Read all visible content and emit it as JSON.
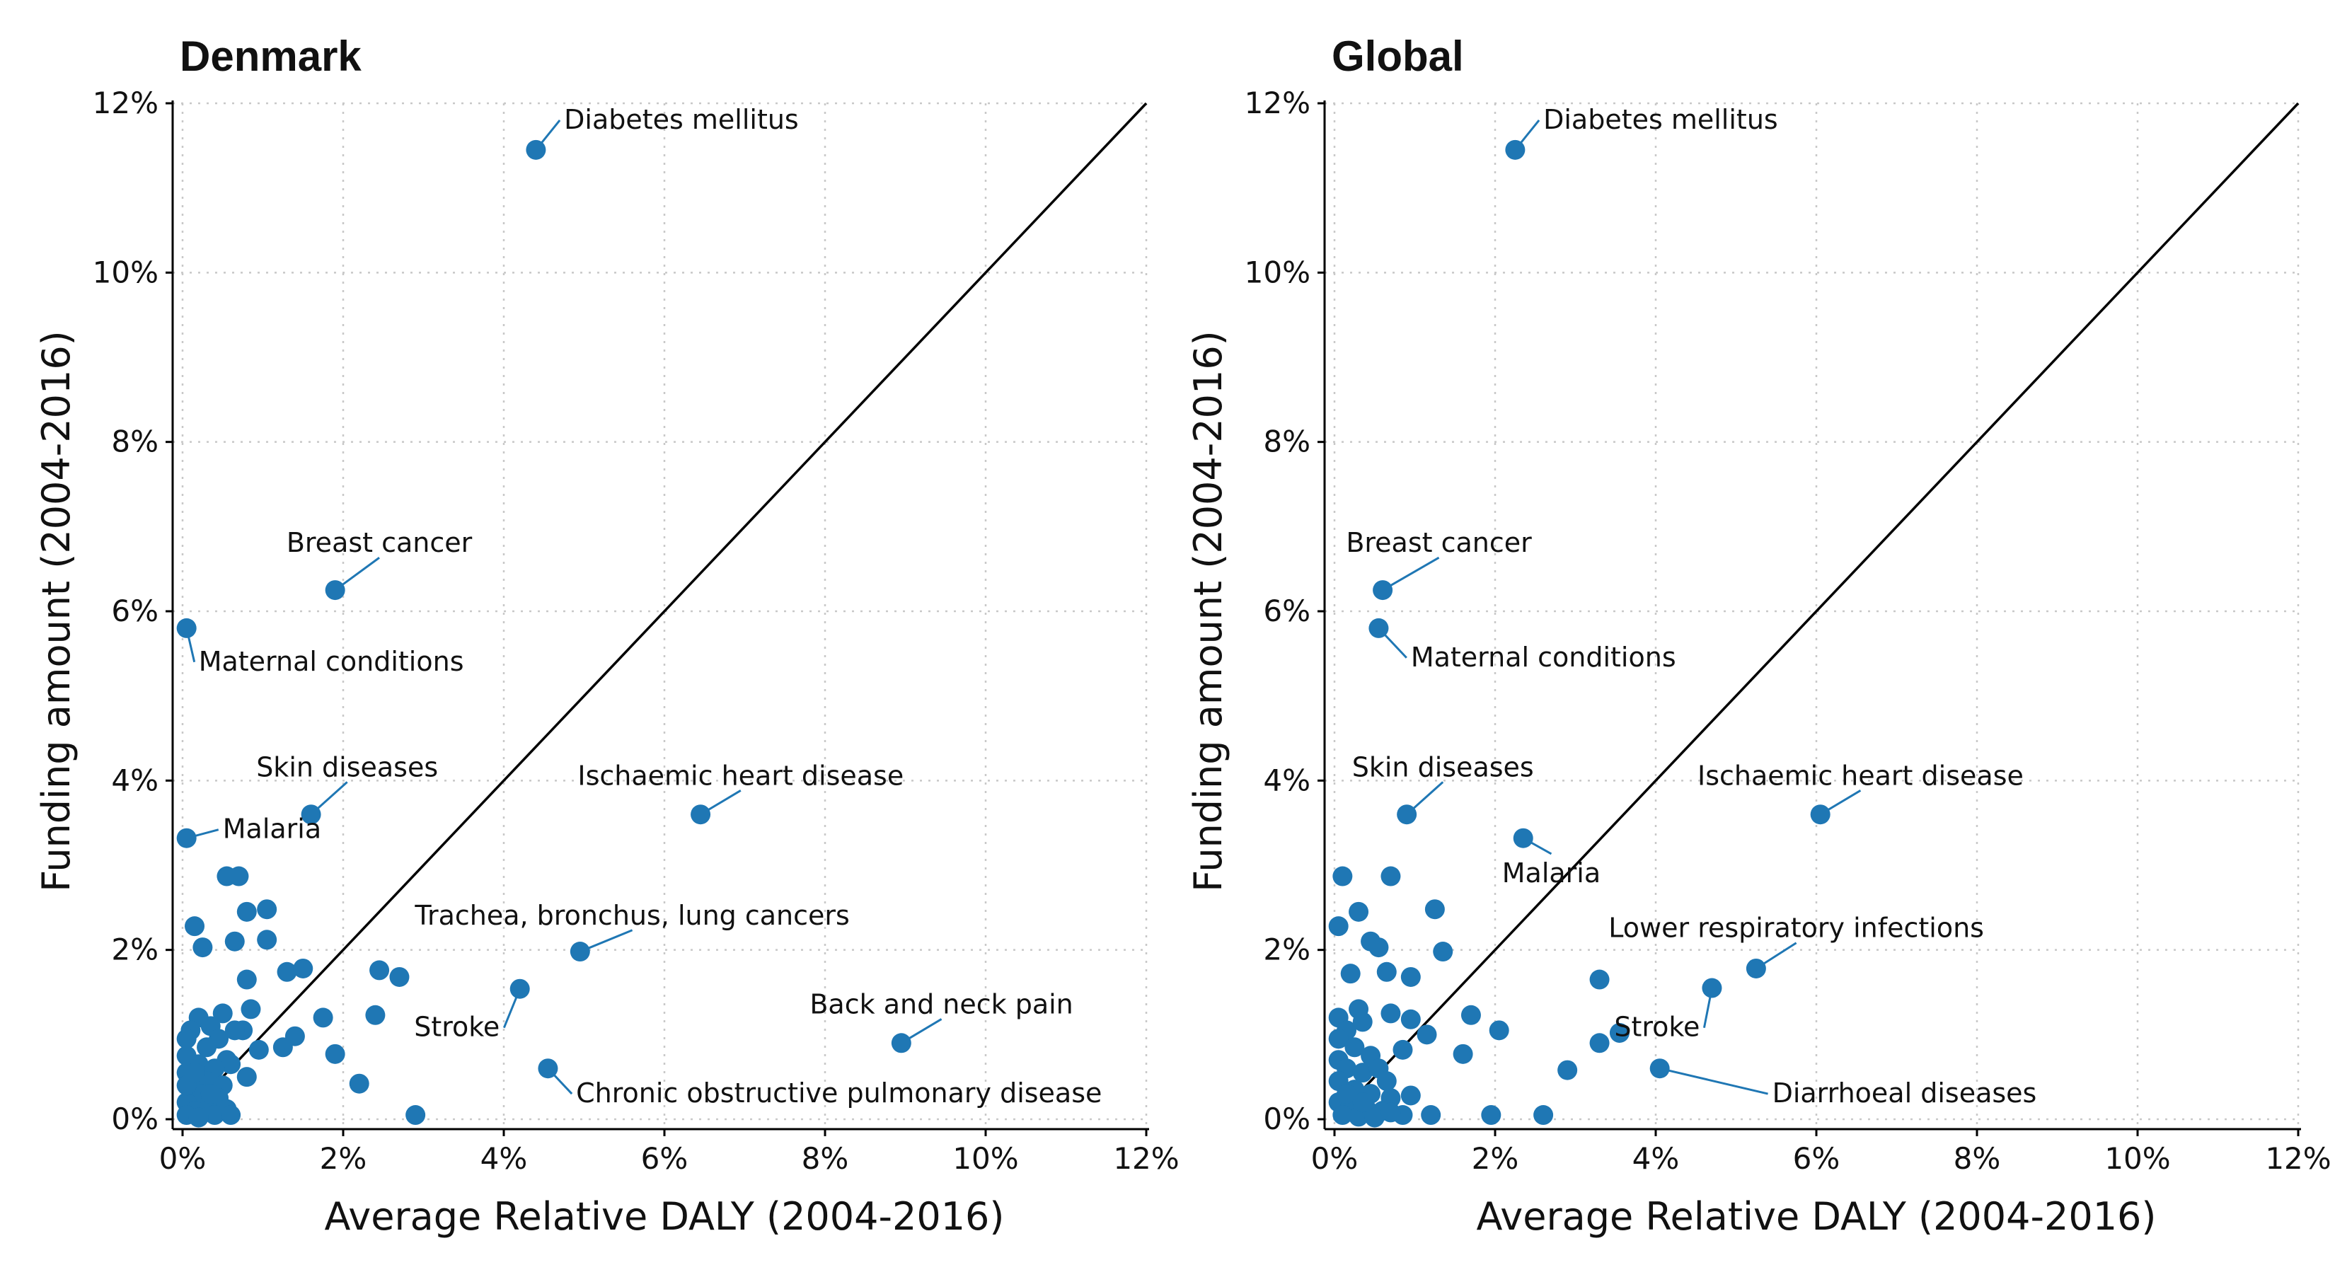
{
  "colors": {
    "point": "#1f77b4",
    "axis": "#000000",
    "grid": "#c8c8c8"
  },
  "chart_data": [
    {
      "type": "scatter",
      "title": "Denmark",
      "xlabel": "Average Relative DALY (2004-2016)",
      "ylabel": "Funding amount (2004-2016)",
      "xlim": [
        0,
        12
      ],
      "ylim": [
        0,
        12
      ],
      "ticks": [
        "0%",
        "2%",
        "4%",
        "6%",
        "8%",
        "10%",
        "12%"
      ],
      "grid": true,
      "reference_line": "y = x",
      "points": [
        {
          "x": 4.4,
          "y": 11.45
        },
        {
          "x": 1.9,
          "y": 6.25
        },
        {
          "x": 0.05,
          "y": 5.8
        },
        {
          "x": 1.6,
          "y": 3.6
        },
        {
          "x": 6.45,
          "y": 3.6
        },
        {
          "x": 0.05,
          "y": 3.32
        },
        {
          "x": 4.95,
          "y": 1.98
        },
        {
          "x": 4.2,
          "y": 1.54
        },
        {
          "x": 8.95,
          "y": 0.9
        },
        {
          "x": 4.55,
          "y": 0.6
        },
        {
          "x": 0.55,
          "y": 2.87
        },
        {
          "x": 0.7,
          "y": 2.87
        },
        {
          "x": 0.8,
          "y": 2.45
        },
        {
          "x": 1.05,
          "y": 2.48
        },
        {
          "x": 0.15,
          "y": 2.28
        },
        {
          "x": 0.25,
          "y": 2.03
        },
        {
          "x": 0.65,
          "y": 2.1
        },
        {
          "x": 1.05,
          "y": 2.12
        },
        {
          "x": 0.8,
          "y": 1.65
        },
        {
          "x": 1.3,
          "y": 1.74
        },
        {
          "x": 1.5,
          "y": 1.78
        },
        {
          "x": 2.45,
          "y": 1.76
        },
        {
          "x": 2.7,
          "y": 1.68
        },
        {
          "x": 0.85,
          "y": 1.3
        },
        {
          "x": 1.75,
          "y": 1.2
        },
        {
          "x": 2.4,
          "y": 1.23
        },
        {
          "x": 0.75,
          "y": 1.05
        },
        {
          "x": 1.4,
          "y": 0.98
        },
        {
          "x": 1.25,
          "y": 0.85
        },
        {
          "x": 0.95,
          "y": 0.82
        },
        {
          "x": 1.9,
          "y": 0.77
        },
        {
          "x": 0.8,
          "y": 0.5
        },
        {
          "x": 2.2,
          "y": 0.42
        },
        {
          "x": 2.9,
          "y": 0.05
        },
        {
          "x": 0.2,
          "y": 1.2
        },
        {
          "x": 0.5,
          "y": 1.25
        },
        {
          "x": 0.35,
          "y": 1.1
        },
        {
          "x": 0.1,
          "y": 1.05
        },
        {
          "x": 0.45,
          "y": 0.95
        },
        {
          "x": 0.65,
          "y": 1.05
        },
        {
          "x": 0.05,
          "y": 0.95
        },
        {
          "x": 0.3,
          "y": 0.85
        },
        {
          "x": 0.55,
          "y": 0.7
        },
        {
          "x": 0.05,
          "y": 0.75
        },
        {
          "x": 0.2,
          "y": 0.65
        },
        {
          "x": 0.6,
          "y": 0.65
        },
        {
          "x": 0.4,
          "y": 0.6
        },
        {
          "x": 0.05,
          "y": 0.55
        },
        {
          "x": 0.3,
          "y": 0.45
        },
        {
          "x": 0.5,
          "y": 0.4
        },
        {
          "x": 0.1,
          "y": 0.35
        },
        {
          "x": 0.25,
          "y": 0.3
        },
        {
          "x": 0.45,
          "y": 0.25
        },
        {
          "x": 0.05,
          "y": 0.2
        },
        {
          "x": 0.3,
          "y": 0.15
        },
        {
          "x": 0.55,
          "y": 0.12
        },
        {
          "x": 0.15,
          "y": 0.1
        },
        {
          "x": 0.4,
          "y": 0.05
        },
        {
          "x": 0.6,
          "y": 0.05
        },
        {
          "x": 0.05,
          "y": 0.05
        },
        {
          "x": 0.2,
          "y": 0.02
        },
        {
          "x": 0.35,
          "y": 0.3
        },
        {
          "x": 0.05,
          "y": 0.4
        },
        {
          "x": 0.15,
          "y": 0.55
        }
      ],
      "annotations": [
        {
          "text": "Diabetes mellitus",
          "x": 4.4,
          "y": 11.45,
          "lx": 4.75,
          "ly": 11.7,
          "anchor": "start"
        },
        {
          "text": "Breast cancer",
          "x": 1.9,
          "y": 6.25,
          "lx": 2.45,
          "ly": 6.7,
          "anchor": "middle"
        },
        {
          "text": "Maternal conditions",
          "x": 0.05,
          "y": 5.8,
          "lx": 0.2,
          "ly": 5.3,
          "anchor": "start"
        },
        {
          "text": "Skin diseases",
          "x": 1.6,
          "y": 3.6,
          "lx": 2.05,
          "ly": 4.05,
          "anchor": "middle"
        },
        {
          "text": "Ischaemic heart disease",
          "x": 6.45,
          "y": 3.6,
          "lx": 6.95,
          "ly": 3.95,
          "anchor": "middle"
        },
        {
          "text": "Malaria",
          "x": 0.05,
          "y": 3.32,
          "lx": 0.5,
          "ly": 3.32,
          "anchor": "start"
        },
        {
          "text": "Trachea, bronchus, lung cancers",
          "x": 4.95,
          "y": 1.98,
          "lx": 5.6,
          "ly": 2.3,
          "anchor": "middle"
        },
        {
          "text": "Stroke",
          "x": 4.2,
          "y": 1.54,
          "lx": 3.95,
          "ly": 0.98,
          "anchor": "end"
        },
        {
          "text": "Back and neck pain",
          "x": 8.95,
          "y": 0.9,
          "lx": 9.45,
          "ly": 1.25,
          "anchor": "middle"
        },
        {
          "text": "Chronic obstructive pulmonary disease",
          "x": 4.55,
          "y": 0.6,
          "lx": 4.9,
          "ly": 0.2,
          "anchor": "start"
        }
      ]
    },
    {
      "type": "scatter",
      "title": "Global",
      "xlabel": "Average Relative DALY (2004-2016)",
      "ylabel": "Funding amount (2004-2016)",
      "xlim": [
        0,
        12
      ],
      "ylim": [
        0,
        12
      ],
      "ticks": [
        "0%",
        "2%",
        "4%",
        "6%",
        "8%",
        "10%",
        "12%"
      ],
      "grid": true,
      "reference_line": "y = x",
      "points": [
        {
          "x": 2.25,
          "y": 11.45
        },
        {
          "x": 0.6,
          "y": 6.25
        },
        {
          "x": 0.55,
          "y": 5.8
        },
        {
          "x": 0.9,
          "y": 3.6
        },
        {
          "x": 6.05,
          "y": 3.6
        },
        {
          "x": 2.35,
          "y": 3.32
        },
        {
          "x": 5.25,
          "y": 1.78
        },
        {
          "x": 4.7,
          "y": 1.55
        },
        {
          "x": 3.55,
          "y": 1.02
        },
        {
          "x": 4.05,
          "y": 0.6
        },
        {
          "x": 0.1,
          "y": 2.87
        },
        {
          "x": 0.7,
          "y": 2.87
        },
        {
          "x": 0.3,
          "y": 2.45
        },
        {
          "x": 1.25,
          "y": 2.48
        },
        {
          "x": 0.05,
          "y": 2.28
        },
        {
          "x": 0.45,
          "y": 2.1
        },
        {
          "x": 0.55,
          "y": 2.03
        },
        {
          "x": 1.35,
          "y": 1.98
        },
        {
          "x": 0.2,
          "y": 1.72
        },
        {
          "x": 0.65,
          "y": 1.74
        },
        {
          "x": 0.95,
          "y": 1.68
        },
        {
          "x": 3.3,
          "y": 1.65
        },
        {
          "x": 0.3,
          "y": 1.3
        },
        {
          "x": 0.7,
          "y": 1.25
        },
        {
          "x": 0.95,
          "y": 1.18
        },
        {
          "x": 1.7,
          "y": 1.23
        },
        {
          "x": 2.05,
          "y": 1.05
        },
        {
          "x": 1.15,
          "y": 1.0
        },
        {
          "x": 3.3,
          "y": 0.9
        },
        {
          "x": 1.6,
          "y": 0.77
        },
        {
          "x": 0.85,
          "y": 0.82
        },
        {
          "x": 2.9,
          "y": 0.58
        },
        {
          "x": 0.95,
          "y": 0.28
        },
        {
          "x": 1.2,
          "y": 0.05
        },
        {
          "x": 1.95,
          "y": 0.05
        },
        {
          "x": 2.6,
          "y": 0.05
        },
        {
          "x": 0.05,
          "y": 1.2
        },
        {
          "x": 0.15,
          "y": 1.05
        },
        {
          "x": 0.35,
          "y": 1.15
        },
        {
          "x": 0.05,
          "y": 0.95
        },
        {
          "x": 0.25,
          "y": 0.85
        },
        {
          "x": 0.45,
          "y": 0.75
        },
        {
          "x": 0.05,
          "y": 0.7
        },
        {
          "x": 0.15,
          "y": 0.6
        },
        {
          "x": 0.35,
          "y": 0.55
        },
        {
          "x": 0.55,
          "y": 0.6
        },
        {
          "x": 0.65,
          "y": 0.45
        },
        {
          "x": 0.05,
          "y": 0.45
        },
        {
          "x": 0.25,
          "y": 0.35
        },
        {
          "x": 0.45,
          "y": 0.3
        },
        {
          "x": 0.7,
          "y": 0.25
        },
        {
          "x": 0.05,
          "y": 0.2
        },
        {
          "x": 0.2,
          "y": 0.15
        },
        {
          "x": 0.4,
          "y": 0.12
        },
        {
          "x": 0.6,
          "y": 0.1
        },
        {
          "x": 0.85,
          "y": 0.05
        },
        {
          "x": 0.1,
          "y": 0.05
        },
        {
          "x": 0.3,
          "y": 0.03
        },
        {
          "x": 0.5,
          "y": 0.02
        },
        {
          "x": 0.7,
          "y": 0.08
        },
        {
          "x": 0.15,
          "y": 0.3
        },
        {
          "x": 0.35,
          "y": 0.2
        }
      ],
      "annotations": [
        {
          "text": "Diabetes mellitus",
          "x": 2.25,
          "y": 11.45,
          "lx": 2.6,
          "ly": 11.7,
          "anchor": "start"
        },
        {
          "text": "Breast cancer",
          "x": 0.6,
          "y": 6.25,
          "lx": 1.3,
          "ly": 6.7,
          "anchor": "middle"
        },
        {
          "text": "Maternal conditions",
          "x": 0.55,
          "y": 5.8,
          "lx": 0.95,
          "ly": 5.35,
          "anchor": "start"
        },
        {
          "text": "Skin diseases",
          "x": 0.9,
          "y": 3.6,
          "lx": 1.35,
          "ly": 4.05,
          "anchor": "middle"
        },
        {
          "text": "Ischaemic heart disease",
          "x": 6.05,
          "y": 3.6,
          "lx": 6.55,
          "ly": 3.95,
          "anchor": "middle"
        },
        {
          "text": "Malaria",
          "x": 2.35,
          "y": 3.32,
          "lx": 2.7,
          "ly": 2.8,
          "anchor": "middle"
        },
        {
          "text": "Lower respiratory infections",
          "x": 5.25,
          "y": 1.78,
          "lx": 5.75,
          "ly": 2.15,
          "anchor": "middle"
        },
        {
          "text": "Stroke",
          "x": 4.7,
          "y": 1.55,
          "lx": 4.55,
          "ly": 0.98,
          "anchor": "end"
        },
        {
          "text": "Diarrhoeal diseases",
          "x": 4.05,
          "y": 0.6,
          "lx": 5.45,
          "ly": 0.2,
          "anchor": "start"
        }
      ]
    }
  ]
}
